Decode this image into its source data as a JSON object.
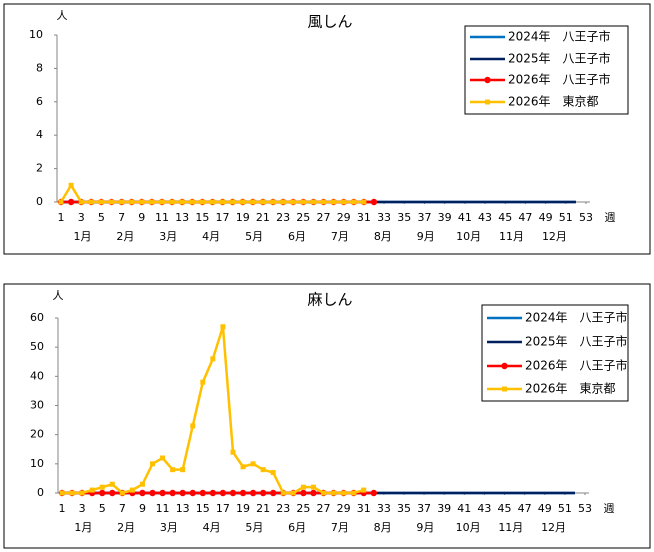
{
  "chart_data": [
    {
      "type": "line",
      "title": "風しん",
      "y_unit": "人",
      "x_label": "週",
      "months": [
        "1月",
        "2月",
        "3月",
        "4月",
        "5月",
        "6月",
        "7月",
        "8月",
        "9月",
        "10月",
        "11月",
        "12月"
      ],
      "x": [
        1,
        2,
        3,
        4,
        5,
        6,
        7,
        8,
        9,
        10,
        11,
        12,
        13,
        14,
        15,
        16,
        17,
        18,
        19,
        20,
        21,
        22,
        23,
        24,
        25,
        26,
        27,
        28,
        29,
        30,
        31,
        32,
        33,
        34,
        35,
        36,
        37,
        38,
        39,
        40,
        41,
        42,
        43,
        44,
        45,
        46,
        47,
        48,
        49,
        50,
        51,
        52,
        53
      ],
      "xlim": [
        1,
        53
      ],
      "xticks": [
        1,
        3,
        5,
        7,
        9,
        11,
        13,
        15,
        17,
        19,
        21,
        23,
        25,
        27,
        29,
        31,
        33,
        35,
        37,
        39,
        41,
        43,
        45,
        47,
        49,
        51,
        53
      ],
      "ylim": [
        0,
        10
      ],
      "yticks": [
        0,
        2,
        4,
        6,
        8,
        10
      ],
      "series": [
        {
          "name": "2024年　八王子市",
          "color": "#0070c0",
          "marker": "none",
          "values": [
            0,
            0,
            0,
            0,
            0,
            0,
            0,
            0,
            0,
            0,
            0,
            0,
            0,
            0,
            0,
            0,
            0,
            0,
            0,
            0,
            0,
            0,
            0,
            0,
            0,
            0,
            0,
            0,
            0,
            0,
            0,
            0,
            0,
            0,
            0,
            0,
            0,
            0,
            0,
            0,
            0,
            0,
            0,
            0,
            0,
            0,
            0,
            0,
            0,
            0,
            0,
            0,
            null
          ]
        },
        {
          "name": "2025年　八王子市",
          "color": "#002060",
          "marker": "none",
          "values": [
            0,
            0,
            0,
            0,
            0,
            0,
            0,
            0,
            0,
            0,
            0,
            0,
            0,
            0,
            0,
            0,
            0,
            0,
            0,
            0,
            0,
            0,
            0,
            0,
            0,
            0,
            0,
            0,
            0,
            0,
            0,
            0,
            0,
            0,
            0,
            0,
            0,
            0,
            0,
            0,
            0,
            0,
            0,
            0,
            0,
            0,
            0,
            0,
            0,
            0,
            0,
            0,
            null
          ]
        },
        {
          "name": "2026年　八王子市",
          "color": "#ff0000",
          "marker": "circle",
          "values": [
            0,
            0,
            0,
            0,
            0,
            0,
            0,
            0,
            0,
            0,
            0,
            0,
            0,
            0,
            0,
            0,
            0,
            0,
            0,
            0,
            0,
            0,
            0,
            0,
            0,
            0,
            0,
            0,
            0,
            0,
            0,
            0,
            null,
            null,
            null,
            null,
            null,
            null,
            null,
            null,
            null,
            null,
            null,
            null,
            null,
            null,
            null,
            null,
            null,
            null,
            null,
            null,
            null
          ]
        },
        {
          "name": "2026年　東京都",
          "color": "#ffc000",
          "marker": "square",
          "values": [
            0,
            1,
            0,
            0,
            0,
            0,
            0,
            0,
            0,
            0,
            0,
            0,
            0,
            0,
            0,
            0,
            0,
            0,
            0,
            0,
            0,
            0,
            0,
            0,
            0,
            0,
            0,
            0,
            0,
            0,
            0,
            null,
            null,
            null,
            null,
            null,
            null,
            null,
            null,
            null,
            null,
            null,
            null,
            null,
            null,
            null,
            null,
            null,
            null,
            null,
            null,
            null,
            null
          ]
        }
      ]
    },
    {
      "type": "line",
      "title": "麻しん",
      "y_unit": "人",
      "x_label": "週",
      "months": [
        "1月",
        "2月",
        "3月",
        "4月",
        "5月",
        "6月",
        "7月",
        "8月",
        "9月",
        "10月",
        "11月",
        "12月"
      ],
      "x": [
        1,
        2,
        3,
        4,
        5,
        6,
        7,
        8,
        9,
        10,
        11,
        12,
        13,
        14,
        15,
        16,
        17,
        18,
        19,
        20,
        21,
        22,
        23,
        24,
        25,
        26,
        27,
        28,
        29,
        30,
        31,
        32,
        33,
        34,
        35,
        36,
        37,
        38,
        39,
        40,
        41,
        42,
        43,
        44,
        45,
        46,
        47,
        48,
        49,
        50,
        51,
        52,
        53
      ],
      "xlim": [
        1,
        53
      ],
      "xticks": [
        1,
        3,
        5,
        7,
        9,
        11,
        13,
        15,
        17,
        19,
        21,
        23,
        25,
        27,
        29,
        31,
        33,
        35,
        37,
        39,
        41,
        43,
        45,
        47,
        49,
        51,
        53
      ],
      "ylim": [
        0,
        60
      ],
      "yticks": [
        0,
        10,
        20,
        30,
        40,
        50,
        60
      ],
      "series": [
        {
          "name": "2024年　八王子市",
          "color": "#0070c0",
          "marker": "none",
          "values": [
            0,
            0,
            0,
            0,
            0,
            0,
            0,
            0,
            0,
            0,
            0,
            0,
            0,
            0,
            0,
            0,
            0,
            0,
            0,
            0,
            0,
            0,
            0,
            0,
            0,
            0,
            0,
            0,
            0,
            0,
            0,
            0,
            0,
            0,
            0,
            0,
            0,
            0,
            0,
            0,
            0,
            0,
            0,
            0,
            0,
            0,
            0,
            0,
            0,
            0,
            0,
            0,
            null
          ]
        },
        {
          "name": "2025年　八王子市",
          "color": "#002060",
          "marker": "none",
          "values": [
            0,
            0,
            0,
            0,
            0,
            0,
            0,
            0,
            0,
            0,
            0,
            0,
            0,
            0,
            0,
            0,
            0,
            0,
            0,
            0,
            0,
            0,
            0,
            0,
            0,
            0,
            0,
            0,
            0,
            0,
            0,
            0,
            0,
            0,
            0,
            0,
            0,
            0,
            0,
            0,
            0,
            0,
            0,
            0,
            0,
            0,
            0,
            0,
            0,
            0,
            0,
            0,
            null
          ]
        },
        {
          "name": "2026年　八王子市",
          "color": "#ff0000",
          "marker": "circle",
          "values": [
            0,
            0,
            0,
            0,
            0,
            0,
            0,
            0,
            0,
            0,
            0,
            0,
            0,
            0,
            0,
            0,
            0,
            0,
            0,
            0,
            0,
            0,
            0,
            0,
            0,
            0,
            0,
            0,
            0,
            0,
            0,
            0,
            null,
            null,
            null,
            null,
            null,
            null,
            null,
            null,
            null,
            null,
            null,
            null,
            null,
            null,
            null,
            null,
            null,
            null,
            null,
            null,
            null
          ]
        },
        {
          "name": "2026年　東京都",
          "color": "#ffc000",
          "marker": "square",
          "values": [
            0,
            0,
            0,
            1,
            2,
            3,
            0,
            1,
            3,
            10,
            12,
            8,
            8,
            23,
            38,
            46,
            57,
            14,
            9,
            10,
            8,
            7,
            0,
            0,
            2,
            2,
            0,
            0,
            0,
            0,
            1,
            null,
            null,
            null,
            null,
            null,
            null,
            null,
            null,
            null,
            null,
            null,
            null,
            null,
            null,
            null,
            null,
            null,
            null,
            null,
            null,
            null,
            null
          ]
        }
      ]
    }
  ]
}
